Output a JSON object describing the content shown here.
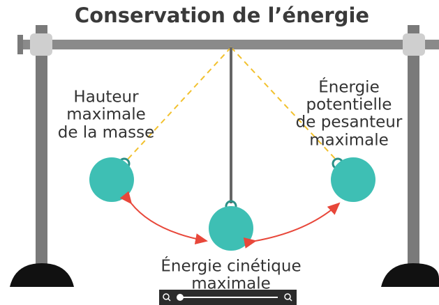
{
  "title": "Conservation de l’énergie",
  "labels": {
    "left": [
      "Hauteur",
      "maximale",
      "de la masse"
    ],
    "right": [
      "Énergie",
      "potentielle",
      "de pesanteur",
      "maximale"
    ],
    "bottom": [
      "Énergie cinétique",
      "maximale"
    ]
  }
}
